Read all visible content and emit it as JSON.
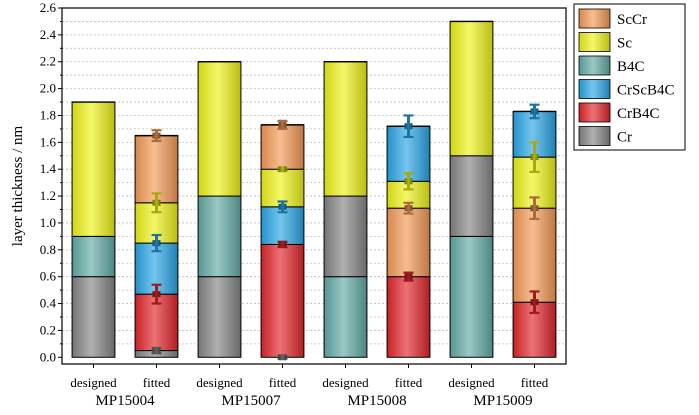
{
  "chart_data": {
    "type": "bar",
    "stacked": true,
    "ylabel": "layer thickness / nm",
    "xlabel": "",
    "ylim": [
      -0.05,
      2.6
    ],
    "yticks": [
      "0.0",
      "0.2",
      "0.4",
      "0.6",
      "0.8",
      "1.0",
      "1.2",
      "1.4",
      "1.6",
      "1.8",
      "2.0",
      "2.2",
      "2.4",
      "2.6"
    ],
    "grid": true,
    "legend_position": "top-right",
    "categories": [
      "designed",
      "fitted",
      "designed",
      "fitted",
      "designed",
      "fitted",
      "designed",
      "fitted"
    ],
    "groups": [
      "MP15004",
      "MP15007",
      "MP15008",
      "MP15009"
    ],
    "layer_colors": {
      "Cr": "#858585",
      "CrB4C": "#e2262b",
      "CrScB4C": "#2aa6e6",
      "B4C": "#63aaa6",
      "Sc": "#eef218",
      "ScCr": "#f39a55"
    },
    "legend": [
      "ScCr",
      "Sc",
      "B4C",
      "CrScB4C",
      "CrB4C",
      "Cr"
    ],
    "bars": [
      {
        "category": "designed",
        "group": "MP15004",
        "segments": [
          {
            "layer": "Cr",
            "from": 0,
            "to": 0.6
          },
          {
            "layer": "B4C",
            "from": 0.6,
            "to": 0.9
          },
          {
            "layer": "Sc",
            "from": 0.9,
            "to": 1.9
          }
        ]
      },
      {
        "category": "fitted",
        "group": "MP15004",
        "segments": [
          {
            "layer": "Cr",
            "from": 0,
            "to": 0.05,
            "err": 0.02
          },
          {
            "layer": "CrB4C",
            "from": 0.05,
            "to": 0.47,
            "err": 0.07
          },
          {
            "layer": "CrScB4C",
            "from": 0.47,
            "to": 0.85,
            "err": 0.06
          },
          {
            "layer": "Sc",
            "from": 0.85,
            "to": 1.15,
            "err": 0.07
          },
          {
            "layer": "ScCr",
            "from": 1.15,
            "to": 1.65,
            "err": 0.04
          }
        ]
      },
      {
        "category": "designed",
        "group": "MP15007",
        "segments": [
          {
            "layer": "Cr",
            "from": 0,
            "to": 0.6
          },
          {
            "layer": "B4C",
            "from": 0.6,
            "to": 1.2
          },
          {
            "layer": "Sc",
            "from": 1.2,
            "to": 2.2
          }
        ]
      },
      {
        "category": "fitted",
        "group": "MP15007",
        "segments": [
          {
            "layer": "Cr",
            "from": 0,
            "to": 0.0,
            "err": 0.01
          },
          {
            "layer": "CrB4C",
            "from": 0.0,
            "to": 0.84,
            "err": 0.02
          },
          {
            "layer": "CrScB4C",
            "from": 0.84,
            "to": 1.12,
            "err": 0.04
          },
          {
            "layer": "Sc",
            "from": 1.12,
            "to": 1.4,
            "err": 0.01
          },
          {
            "layer": "ScCr",
            "from": 1.4,
            "to": 1.73,
            "err": 0.03
          }
        ]
      },
      {
        "category": "designed",
        "group": "MP15008",
        "segments": [
          {
            "layer": "B4C",
            "from": 0,
            "to": 0.6
          },
          {
            "layer": "Cr",
            "from": 0.6,
            "to": 1.2
          },
          {
            "layer": "Sc",
            "from": 1.2,
            "to": 2.2
          }
        ]
      },
      {
        "category": "fitted",
        "group": "MP15008",
        "segments": [
          {
            "layer": "CrB4C",
            "from": 0,
            "to": 0.6,
            "err": 0.03
          },
          {
            "layer": "ScCr",
            "from": 0.6,
            "to": 1.11,
            "err": 0.04
          },
          {
            "layer": "Sc",
            "from": 1.11,
            "to": 1.31,
            "err": 0.06
          },
          {
            "layer": "CrScB4C",
            "from": 1.31,
            "to": 1.72,
            "err": 0.08
          }
        ]
      },
      {
        "category": "designed",
        "group": "MP15009",
        "segments": [
          {
            "layer": "B4C",
            "from": 0,
            "to": 0.9
          },
          {
            "layer": "Cr",
            "from": 0.9,
            "to": 1.5
          },
          {
            "layer": "Sc",
            "from": 1.5,
            "to": 2.5
          }
        ]
      },
      {
        "category": "fitted",
        "group": "MP15009",
        "segments": [
          {
            "layer": "CrB4C",
            "from": 0,
            "to": 0.41,
            "err": 0.08
          },
          {
            "layer": "ScCr",
            "from": 0.41,
            "to": 1.11,
            "err": 0.08
          },
          {
            "layer": "Sc",
            "from": 1.11,
            "to": 1.49,
            "err": 0.11
          },
          {
            "layer": "CrScB4C",
            "from": 1.49,
            "to": 1.83,
            "err": 0.05
          }
        ]
      }
    ]
  }
}
